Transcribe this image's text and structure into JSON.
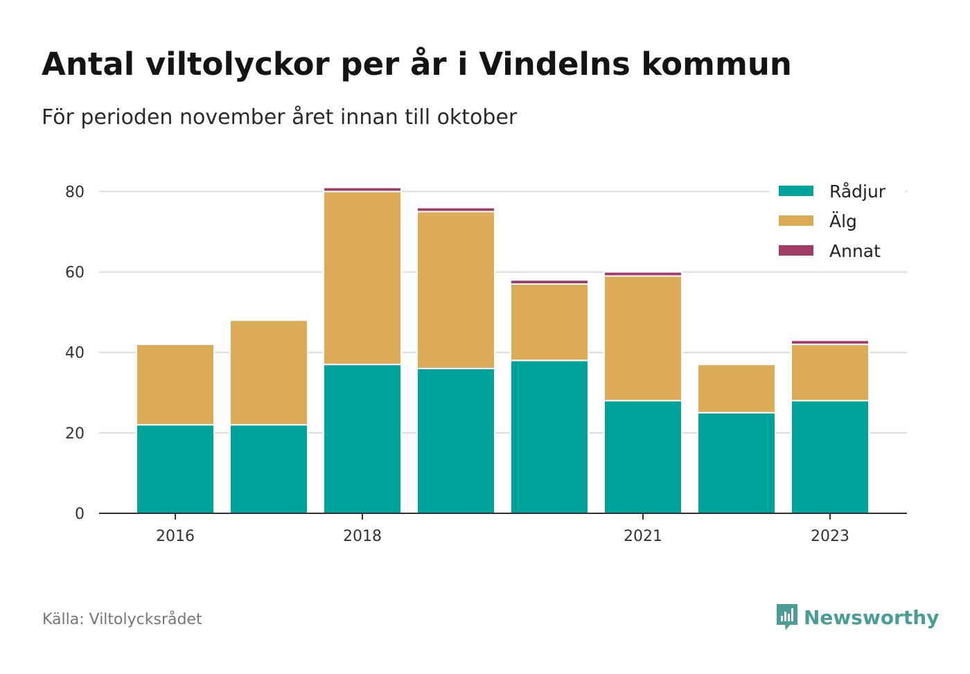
{
  "title": "Antal viltolyckor per år i Vindelns kommun",
  "subtitle": "För perioden november året innan till oktober",
  "source": "Källa: Viltolycksrådet",
  "logo": {
    "text": "Newsworthy",
    "icon": "newsworthy-logo-icon",
    "color": "#4a9d96"
  },
  "chart_data": {
    "type": "bar",
    "stacked": true,
    "categories": [
      2016,
      2017,
      2018,
      2019,
      2020,
      2021,
      2022,
      2023
    ],
    "x_tick_labels": [
      {
        "category": 2016,
        "label": "2016"
      },
      {
        "category": 2018,
        "label": "2018"
      },
      {
        "category": 2021,
        "label": "2021"
      },
      {
        "category": 2023,
        "label": "2023"
      }
    ],
    "y_ticks": [
      0,
      20,
      40,
      60,
      80
    ],
    "ylim": [
      0,
      88
    ],
    "grid": true,
    "legend_position": "top-right",
    "series": [
      {
        "name": "Rådjur",
        "color": "#00a39a",
        "values": [
          22,
          22,
          37,
          36,
          38,
          28,
          25,
          28
        ]
      },
      {
        "name": "Älg",
        "color": "#dcab58",
        "values": [
          20,
          26,
          43,
          39,
          19,
          31,
          12,
          14
        ]
      },
      {
        "name": "Annat",
        "color": "#a03c66",
        "values": [
          0,
          0,
          1,
          1,
          1,
          1,
          0,
          1
        ]
      }
    ]
  }
}
